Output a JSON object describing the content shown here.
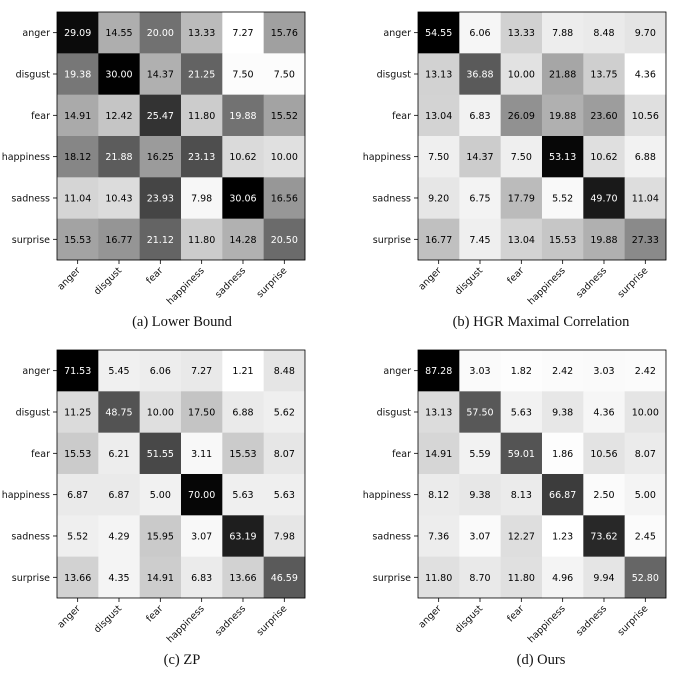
{
  "chart_data": [
    {
      "type": "heatmap",
      "caption": "(a) Lower Bound",
      "rows": [
        "anger",
        "disgust",
        "fear",
        "happiness",
        "sadness",
        "surprise"
      ],
      "columns": [
        "anger",
        "disgust",
        "fear",
        "happiness",
        "sadness",
        "surprise"
      ],
      "values": [
        [
          29.09,
          14.55,
          20.0,
          13.33,
          7.27,
          15.76
        ],
        [
          19.38,
          30.0,
          14.37,
          21.25,
          7.5,
          7.5
        ],
        [
          14.91,
          12.42,
          25.47,
          11.8,
          19.88,
          15.52
        ],
        [
          18.12,
          21.88,
          16.25,
          23.13,
          10.62,
          10.0
        ],
        [
          11.04,
          10.43,
          23.93,
          7.98,
          30.06,
          16.56
        ],
        [
          15.53,
          16.77,
          21.12,
          11.8,
          14.28,
          20.5
        ]
      ],
      "colormap": "gray_r",
      "value_range": [
        7.27,
        30.06
      ]
    },
    {
      "type": "heatmap",
      "caption": "(b) HGR Maximal Correlation",
      "rows": [
        "anger",
        "disgust",
        "fear",
        "happiness",
        "sadness",
        "surprise"
      ],
      "columns": [
        "anger",
        "disgust",
        "fear",
        "happiness",
        "sadness",
        "surprise"
      ],
      "values": [
        [
          54.55,
          6.06,
          13.33,
          7.88,
          8.48,
          9.7
        ],
        [
          13.13,
          36.88,
          10.0,
          21.88,
          13.75,
          4.36
        ],
        [
          13.04,
          6.83,
          26.09,
          19.88,
          23.6,
          10.56
        ],
        [
          7.5,
          14.37,
          7.5,
          53.13,
          10.62,
          6.88
        ],
        [
          9.2,
          6.75,
          17.79,
          5.52,
          49.7,
          11.04
        ],
        [
          16.77,
          7.45,
          13.04,
          15.53,
          19.88,
          27.33
        ]
      ],
      "colormap": "gray_r",
      "value_range": [
        4.36,
        54.55
      ]
    },
    {
      "type": "heatmap",
      "caption": "(c) ZP",
      "rows": [
        "anger",
        "disgust",
        "fear",
        "happiness",
        "sadness",
        "surprise"
      ],
      "columns": [
        "anger",
        "disgust",
        "fear",
        "happiness",
        "sadness",
        "surprise"
      ],
      "values": [
        [
          71.53,
          5.45,
          6.06,
          7.27,
          1.21,
          8.48
        ],
        [
          11.25,
          48.75,
          10.0,
          17.5,
          6.88,
          5.62
        ],
        [
          15.53,
          6.21,
          51.55,
          3.11,
          15.53,
          8.07
        ],
        [
          6.87,
          6.87,
          5.0,
          70.0,
          5.63,
          5.63
        ],
        [
          5.52,
          4.29,
          15.95,
          3.07,
          63.19,
          7.98
        ],
        [
          13.66,
          4.35,
          14.91,
          6.83,
          13.66,
          46.59
        ]
      ],
      "colormap": "gray_r",
      "value_range": [
        1.21,
        71.53
      ]
    },
    {
      "type": "heatmap",
      "caption": "(d) Ours",
      "rows": [
        "anger",
        "disgust",
        "fear",
        "happiness",
        "sadness",
        "surprise"
      ],
      "columns": [
        "anger",
        "disgust",
        "fear",
        "happiness",
        "sadness",
        "surprise"
      ],
      "values": [
        [
          87.28,
          3.03,
          1.82,
          2.42,
          3.03,
          2.42
        ],
        [
          13.13,
          57.5,
          5.63,
          9.38,
          4.36,
          10.0
        ],
        [
          14.91,
          5.59,
          59.01,
          1.86,
          10.56,
          8.07
        ],
        [
          8.12,
          9.38,
          8.13,
          66.87,
          2.5,
          5.0
        ],
        [
          7.36,
          3.07,
          12.27,
          1.23,
          73.62,
          2.45
        ],
        [
          11.8,
          8.7,
          11.8,
          4.96,
          9.94,
          52.8
        ]
      ],
      "colormap": "gray_r",
      "value_range": [
        1.23,
        87.28
      ]
    }
  ]
}
